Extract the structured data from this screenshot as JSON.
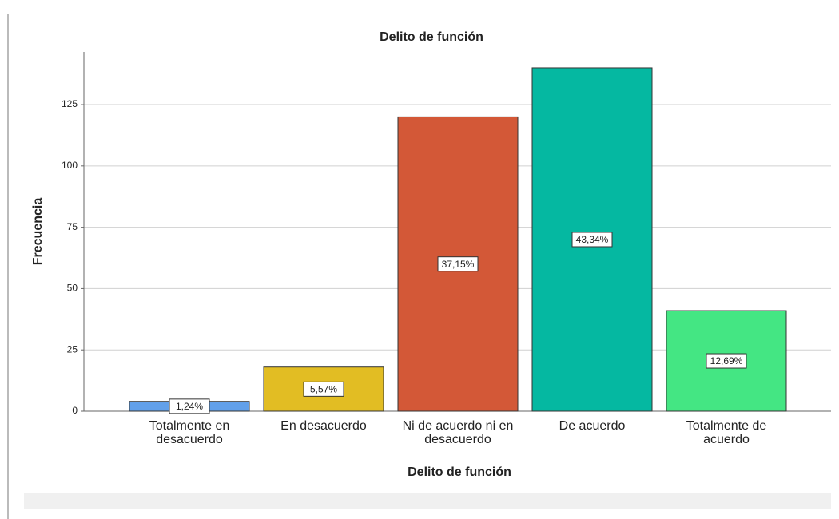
{
  "chart_data": {
    "type": "bar",
    "title": "Delito de función",
    "x_label": "Delito de función",
    "y_label": "Frecuencia",
    "categories": [
      "Totalmente en desacuerdo",
      "En desacuerdo",
      "Ni de acuerdo ni en desacuerdo",
      "De acuerdo",
      "Totalmente de acuerdo"
    ],
    "values": [
      4,
      18,
      120,
      140,
      41
    ],
    "percent_labels": [
      "1,24%",
      "5,57%",
      "37,15%",
      "43,34%",
      "12,69%"
    ],
    "colors": [
      "#62a0ea",
      "#e2bd23",
      "#d35837",
      "#05b8a1",
      "#44e683"
    ],
    "ylim": [
      0,
      146.5
    ],
    "yticks": [
      0,
      25,
      50,
      75,
      100,
      125
    ],
    "grid": true
  }
}
